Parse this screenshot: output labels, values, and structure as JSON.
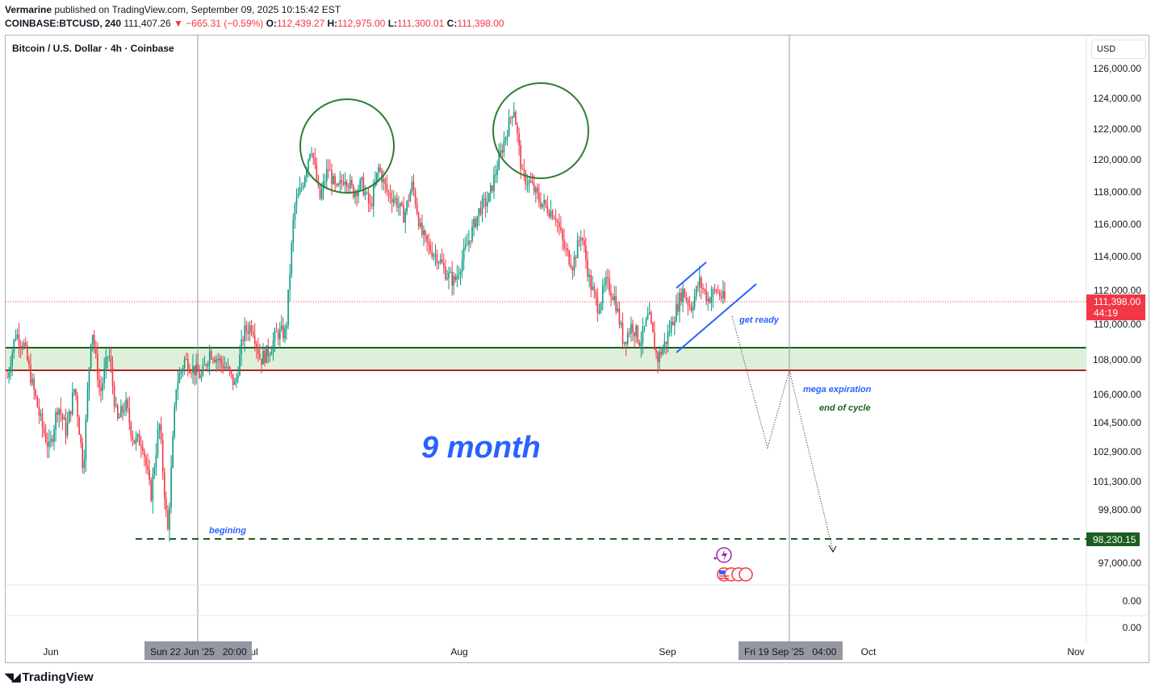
{
  "header": {
    "publisher": "Vermarine",
    "published_text": "published on TradingView.com, September 09, 2025 10:15:42 EST",
    "ticker": "COINBASE:BTCUSD, 240",
    "last": "111,407.26",
    "change": "−665.31 (−0.59%)",
    "o_label": "O:",
    "o_val": "112,439.27",
    "h_label": "H:",
    "h_val": "112,975.00",
    "l_label": "L:",
    "l_val": "111,300.01",
    "c_label": "C:",
    "c_val": "111,398.00"
  },
  "symbol_title": "Bitcoin / U.S. Dollar · 4h · Coinbase",
  "currency": "USD",
  "branding": "TradingView",
  "colors": {
    "up": "#089981",
    "down": "#f23645",
    "zone_fill": "#dff0da",
    "zone_top": "#1b5e20",
    "zone_bottom": "#b22222",
    "annot_blue": "#2962ff",
    "circle": "#2e7d32"
  },
  "chart_data": {
    "type": "candlestick",
    "title": "Bitcoin / U.S. Dollar · 4h · Coinbase",
    "y_ticks": [
      "126,000.00",
      "124,000.00",
      "122,000.00",
      "120,000.00",
      "118,000.00",
      "116,000.00",
      "114,000.00",
      "112,000.00",
      "110,000.00",
      "108,000.00",
      "106,000.00",
      "104,500.00",
      "102,900.00",
      "101,300.00",
      "99,800.00",
      "97,000.00",
      "0.00",
      "0.00"
    ],
    "x_ticks": [
      "Jun",
      "Jul",
      "Aug",
      "Sep",
      "Oct",
      "Nov"
    ],
    "x_crosshair_labels": [
      "Sun 22 Jun '25   20:00",
      "Fri 19 Sep '25   04:00"
    ],
    "price_marker": {
      "value": "111,398.00",
      "countdown": "44:19"
    },
    "support_marker": "98,230.15",
    "price_path": [
      [
        107000,
        109500
      ],
      [
        108800,
        106500
      ],
      [
        104500,
        103000
      ],
      [
        105500,
        104000
      ],
      [
        106500,
        102000
      ],
      [
        110000,
        106000
      ],
      [
        108500,
        104500
      ],
      [
        105500,
        103500
      ],
      [
        103500,
        100500
      ],
      [
        104500,
        98500
      ],
      [
        106500,
        108000
      ],
      [
        107500,
        107000
      ],
      [
        108500,
        108000
      ],
      [
        107500,
        106500
      ],
      [
        109500,
        110000
      ],
      [
        108000,
        108500
      ],
      [
        109500,
        109500
      ],
      [
        117000,
        118500
      ],
      [
        121000,
        117500
      ],
      [
        119500,
        118000
      ],
      [
        119000,
        118000
      ],
      [
        118500,
        117000
      ],
      [
        119500,
        118000
      ],
      [
        117500,
        116500
      ],
      [
        118500,
        115500
      ],
      [
        114500,
        114000
      ],
      [
        113000,
        112500
      ],
      [
        114000,
        115500
      ],
      [
        117000,
        117500
      ],
      [
        119500,
        121500
      ],
      [
        123500,
        119000
      ],
      [
        118500,
        117500
      ],
      [
        117000,
        116500
      ],
      [
        114500,
        113500
      ],
      [
        115500,
        112500
      ],
      [
        111000,
        112500
      ],
      [
        111500,
        109000
      ],
      [
        110000,
        109000
      ],
      [
        110500,
        108000
      ],
      [
        109000,
        110500
      ],
      [
        112000,
        111000
      ],
      [
        112500,
        111500
      ],
      [
        112000,
        111398
      ]
    ],
    "support_zone": [
      107500,
      108900
    ],
    "support_line": 98230.15,
    "annotations": [
      "9 month",
      "get ready",
      "mega expiration",
      "end of cycle",
      "begining"
    ]
  }
}
